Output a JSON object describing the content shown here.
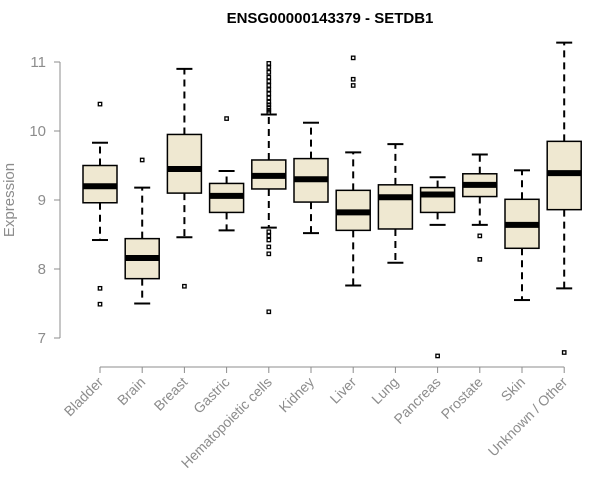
{
  "chart_data": {
    "type": "boxplot",
    "title": "ENSG00000143379 - SETDB1",
    "xlabel": "",
    "ylabel": "Expression",
    "ylim": [
      6.6,
      11.45
    ],
    "yticks": [
      7,
      8,
      9,
      10,
      11
    ],
    "colors": {
      "box_fill": "#efe8d1",
      "stroke": "#000000",
      "axis": "#8c8c8c"
    },
    "categories": [
      "Bladder",
      "Brain",
      "Breast",
      "Gastric",
      "Hematopoietic cells",
      "Kidney",
      "Liver",
      "Lung",
      "Pancreas",
      "Prostate",
      "Skin",
      "Unknown / Other"
    ],
    "boxes": [
      {
        "name": "Bladder",
        "whisker_low": 8.42,
        "q1": 8.96,
        "median": 9.2,
        "q3": 9.5,
        "whisker_high": 9.83,
        "outliers": [
          10.39,
          7.72,
          7.49
        ]
      },
      {
        "name": "Brain",
        "whisker_low": 7.5,
        "q1": 7.86,
        "median": 8.16,
        "q3": 8.44,
        "whisker_high": 9.18,
        "outliers": [
          9.58
        ]
      },
      {
        "name": "Breast",
        "whisker_low": 8.46,
        "q1": 9.1,
        "median": 9.45,
        "q3": 9.95,
        "whisker_high": 10.9,
        "outliers": [
          7.75
        ]
      },
      {
        "name": "Gastric",
        "whisker_low": 8.56,
        "q1": 8.82,
        "median": 9.06,
        "q3": 9.24,
        "whisker_high": 9.42,
        "outliers": [
          10.18
        ]
      },
      {
        "name": "Hematopoietic cells",
        "whisker_low": 8.6,
        "q1": 9.16,
        "median": 9.35,
        "q3": 9.58,
        "whisker_high": 10.24,
        "outliers": [
          10.98,
          10.92,
          10.85,
          10.78,
          10.72,
          10.66,
          10.6,
          10.54,
          10.48,
          10.42,
          10.38,
          10.34,
          10.3,
          10.27,
          8.54,
          8.48,
          8.42,
          8.32,
          8.22,
          7.38
        ]
      },
      {
        "name": "Kidney",
        "whisker_low": 8.52,
        "q1": 8.97,
        "median": 9.3,
        "q3": 9.6,
        "whisker_high": 10.12,
        "outliers": []
      },
      {
        "name": "Liver",
        "whisker_low": 7.76,
        "q1": 8.56,
        "median": 8.82,
        "q3": 9.14,
        "whisker_high": 9.69,
        "outliers": [
          11.06,
          10.75,
          10.66
        ]
      },
      {
        "name": "Lung",
        "whisker_low": 8.09,
        "q1": 8.58,
        "median": 9.04,
        "q3": 9.22,
        "whisker_high": 9.81,
        "outliers": []
      },
      {
        "name": "Pancreas",
        "whisker_low": 8.64,
        "q1": 8.82,
        "median": 9.08,
        "q3": 9.18,
        "whisker_high": 9.33,
        "outliers": [
          6.74
        ]
      },
      {
        "name": "Prostate",
        "whisker_low": 8.64,
        "q1": 9.05,
        "median": 9.22,
        "q3": 9.38,
        "whisker_high": 9.66,
        "outliers": [
          8.48,
          8.14
        ]
      },
      {
        "name": "Skin",
        "whisker_low": 7.55,
        "q1": 8.3,
        "median": 8.64,
        "q3": 9.01,
        "whisker_high": 9.43,
        "outliers": []
      },
      {
        "name": "Unknown / Other",
        "whisker_low": 7.72,
        "q1": 8.86,
        "median": 9.39,
        "q3": 9.85,
        "whisker_high": 11.28,
        "outliers": [
          6.79
        ]
      }
    ]
  }
}
